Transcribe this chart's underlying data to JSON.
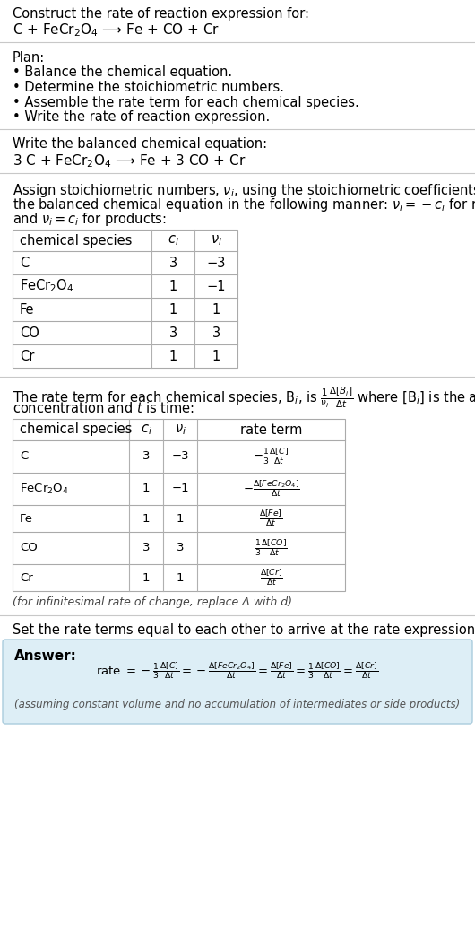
{
  "bg_color": "#ffffff",
  "text_color": "#000000",
  "section_line_color": "#d0d0d0",
  "answer_box_color": "#ddeef6",
  "answer_box_edge": "#aaccdd",
  "title_text": "Construct the rate of reaction expression for:",
  "reaction_unbalanced": "C + FeCr$_2$O$_4$ ⟶ Fe + CO + Cr",
  "plan_title": "Plan:",
  "plan_bullets": [
    "• Balance the chemical equation.",
    "• Determine the stoichiometric numbers.",
    "• Assemble the rate term for each chemical species.",
    "• Write the rate of reaction expression."
  ],
  "balanced_title": "Write the balanced chemical equation:",
  "balanced_eq": "3 C + FeCr$_2$O$_4$ ⟶ Fe + 3 CO + Cr",
  "stoich_intro1": "Assign stoichiometric numbers, $\\nu_i$, using the stoichiometric coefficients, $c_i$, from",
  "stoich_intro2": "the balanced chemical equation in the following manner: $\\nu_i = -c_i$ for reactants",
  "stoich_intro3": "and $\\nu_i = c_i$ for products:",
  "table1_headers": [
    "chemical species",
    "$c_i$",
    "$\\nu_i$"
  ],
  "table1_data": [
    [
      "C",
      "3",
      "−3"
    ],
    [
      "FeCr$_2$O$_4$",
      "1",
      "−1"
    ],
    [
      "Fe",
      "1",
      "1"
    ],
    [
      "CO",
      "3",
      "3"
    ],
    [
      "Cr",
      "1",
      "1"
    ]
  ],
  "rate_intro1": "The rate term for each chemical species, B$_i$, is $\\frac{1}{\\nu_i}\\frac{\\Delta[B_i]}{\\Delta t}$ where [B$_i$] is the amount",
  "rate_intro2": "concentration and $t$ is time:",
  "table2_headers": [
    "chemical species",
    "$c_i$",
    "$\\nu_i$",
    "rate term"
  ],
  "table2_data": [
    [
      "C",
      "3",
      "−3",
      "$-\\frac{1}{3}\\frac{\\Delta[C]}{\\Delta t}$"
    ],
    [
      "FeCr$_2$O$_4$",
      "1",
      "−1",
      "$-\\frac{\\Delta[FeCr_2O_4]}{\\Delta t}$"
    ],
    [
      "Fe",
      "1",
      "1",
      "$\\frac{\\Delta[Fe]}{\\Delta t}$"
    ],
    [
      "CO",
      "3",
      "3",
      "$\\frac{1}{3}\\frac{\\Delta[CO]}{\\Delta t}$"
    ],
    [
      "Cr",
      "1",
      "1",
      "$\\frac{\\Delta[Cr]}{\\Delta t}$"
    ]
  ],
  "infinitesimal_note": "(for infinitesimal rate of change, replace Δ with d)",
  "set_equal_text": "Set the rate terms equal to each other to arrive at the rate expression:",
  "answer_label": "Answer:",
  "rate_expr1": "rate $= -\\frac{1}{3}\\frac{\\Delta[C]}{\\Delta t} = -\\frac{\\Delta[FeCr_2O_4]}{\\Delta t} = \\frac{\\Delta[Fe]}{\\Delta t} = \\frac{1}{3}\\frac{\\Delta[CO]}{\\Delta t} = \\frac{\\Delta[Cr]}{\\Delta t}$",
  "assuming_note": "(assuming constant volume and no accumulation of intermediates or side products)"
}
